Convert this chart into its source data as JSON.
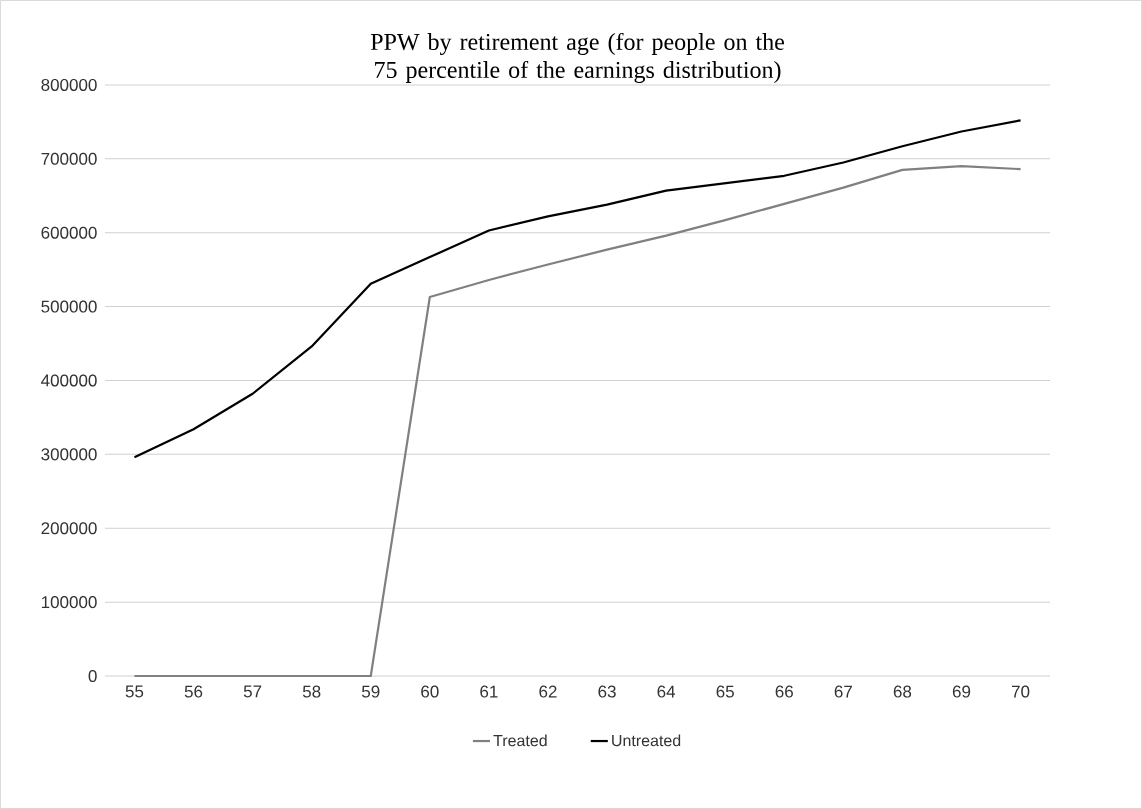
{
  "chart_data": {
    "type": "line",
    "title": "PPW by retirement age (for people on the 75 percentile of the earnings distribution)",
    "categories": [
      "55",
      "56",
      "57",
      "58",
      "59",
      "60",
      "61",
      "62",
      "63",
      "64",
      "65",
      "66",
      "67",
      "68",
      "69",
      "70"
    ],
    "series": [
      {
        "name": "Treated",
        "color": "#808080",
        "values": [
          0,
          0,
          0,
          0,
          0,
          513000,
          536000,
          557000,
          577000,
          596000,
          617000,
          639000,
          661000,
          685000,
          690000,
          686000
        ]
      },
      {
        "name": "Untreated",
        "color": "#000000",
        "values": [
          296000,
          334000,
          382000,
          446000,
          531000,
          567000,
          603000,
          622000,
          638000,
          657000,
          667000,
          677000,
          695000,
          717000,
          737000,
          752000
        ]
      }
    ],
    "ylim": [
      0,
      800000
    ],
    "yticks": [
      0,
      100000,
      200000,
      300000,
      400000,
      500000,
      600000,
      700000,
      800000
    ],
    "grid": "y",
    "legend": "bottom",
    "marker": "none",
    "line_style": "solid"
  }
}
